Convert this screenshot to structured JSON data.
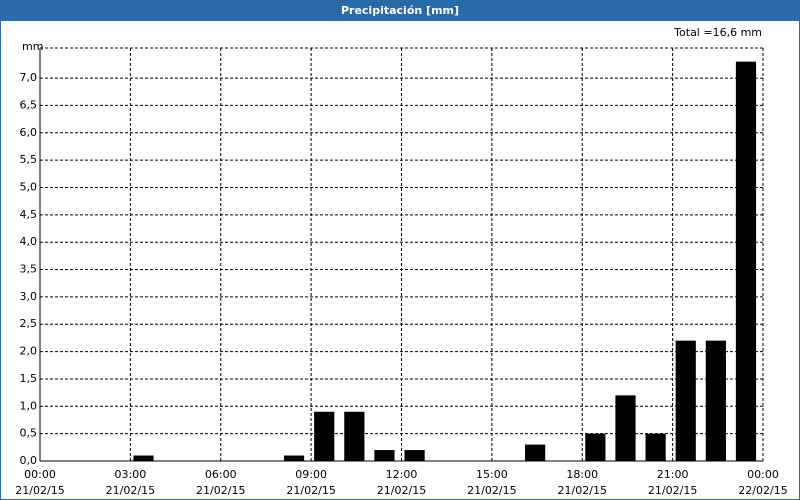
{
  "chart_data": {
    "type": "bar",
    "title": "Precipitación [mm]",
    "total": "Total =16,6 mm",
    "y_label": "mm",
    "x": [
      3,
      8,
      9,
      10,
      11,
      12,
      16,
      18,
      19,
      20,
      21,
      22,
      23
    ],
    "values": [
      0.1,
      0.1,
      0.9,
      0.9,
      0.2,
      0.2,
      0.3,
      0.5,
      1.2,
      0.5,
      2.2,
      2.2,
      7.3
    ],
    "color": "#000000",
    "xlim": [
      0,
      24
    ],
    "xticks": [
      {
        "value": 0,
        "label": "00:00",
        "date": "21/02/15"
      },
      {
        "value": 3,
        "label": "03:00",
        "date": "21/02/15"
      },
      {
        "value": 6,
        "label": "06:00",
        "date": "21/02/15"
      },
      {
        "value": 9,
        "label": "09:00",
        "date": "21/02/15"
      },
      {
        "value": 12,
        "label": "12:00",
        "date": "21/02/15"
      },
      {
        "value": 15,
        "label": "15:00",
        "date": "21/02/15"
      },
      {
        "value": 18,
        "label": "18:00",
        "date": "21/02/15"
      },
      {
        "value": 21,
        "label": "21:00",
        "date": "21/02/15"
      },
      {
        "value": 24,
        "label": "00:00",
        "date": "22/02/15"
      }
    ],
    "ylim": [
      0,
      7.55
    ],
    "yticks": [
      {
        "value": 0,
        "label": "0,0"
      },
      {
        "value": 0.5,
        "label": "0,5"
      },
      {
        "value": 1,
        "label": "1,0"
      },
      {
        "value": 1.5,
        "label": "1,5"
      },
      {
        "value": 2,
        "label": "2,0"
      },
      {
        "value": 2.5,
        "label": "2,5"
      },
      {
        "value": 3,
        "label": "3,0"
      },
      {
        "value": 3.5,
        "label": "3,5"
      },
      {
        "value": 4,
        "label": "4,0"
      },
      {
        "value": 4.5,
        "label": "4,5"
      },
      {
        "value": 5,
        "label": "5,0"
      },
      {
        "value": 5.5,
        "label": "5,5"
      },
      {
        "value": 6,
        "label": "6,0"
      },
      {
        "value": 6.5,
        "label": "6,5"
      },
      {
        "value": 7,
        "label": "7,0"
      }
    ],
    "grid": true
  }
}
